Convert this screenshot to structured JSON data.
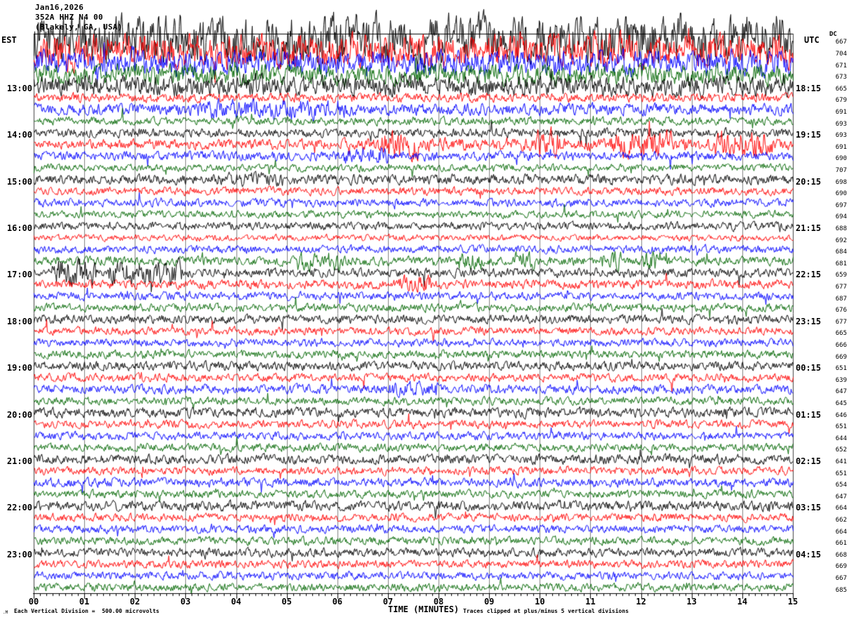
{
  "header": {
    "date": "Jan16,2026",
    "station": "352A HHZ N4 00",
    "location": "(Blakely, GA, USA)",
    "left_timezone": "EST",
    "right_timezone": "UTC",
    "dc_column_label": "DC"
  },
  "footer": {
    "corner_mark": ".M",
    "scale_note": "Each Vertical Division =  500.00 microvolts",
    "axis_title": "TIME (MINUTES)",
    "clip_note": "Traces clipped at plus/minus 5 vertical divisions"
  },
  "chart_data": {
    "type": "line",
    "title": "Helicorder seismogram 352A HHZ N4 00 Jan16,2026",
    "xlabel": "TIME (MINUTES)",
    "x_range_minutes": [
      0,
      15
    ],
    "x_tick_labels": [
      "00",
      "01",
      "02",
      "03",
      "04",
      "05",
      "06",
      "07",
      "08",
      "09",
      "10",
      "11",
      "12",
      "13",
      "14",
      "15"
    ],
    "minor_ticks_per_minute": 8,
    "minutes_per_row": 15,
    "vertical_division_microvolts": 500.0,
    "clip_divisions": 5,
    "grid": true,
    "grid_color": "#808080",
    "border_color": "#444444",
    "palette": {
      "black": "#000000",
      "red": "#ff0000",
      "blue": "#0000ff",
      "green": "#006600"
    },
    "rows": [
      {
        "color": "black",
        "est": "",
        "utc": "",
        "dc": "667",
        "amp": 26,
        "bursts": []
      },
      {
        "color": "red",
        "est": "",
        "utc": "",
        "dc": "704",
        "amp": 19,
        "bursts": []
      },
      {
        "color": "blue",
        "est": "",
        "utc": "",
        "dc": "671",
        "amp": 14,
        "bursts": []
      },
      {
        "color": "green",
        "est": "",
        "utc": "",
        "dc": "673",
        "amp": 11,
        "bursts": []
      },
      {
        "color": "black",
        "est": "13:00",
        "utc": "18:15",
        "dc": "665",
        "amp": 11,
        "bursts": []
      },
      {
        "color": "red",
        "est": "",
        "utc": "",
        "dc": "679",
        "amp": 5,
        "bursts": []
      },
      {
        "color": "blue",
        "est": "",
        "utc": "",
        "dc": "691",
        "amp": 6.5,
        "bursts": [
          [
            3.3,
            6.2,
            1.7
          ]
        ]
      },
      {
        "color": "green",
        "est": "",
        "utc": "",
        "dc": "693",
        "amp": 4.5,
        "bursts": []
      },
      {
        "color": "black",
        "est": "14:00",
        "utc": "19:15",
        "dc": "693",
        "amp": 5,
        "bursts": []
      },
      {
        "color": "red",
        "est": "",
        "utc": "",
        "dc": "691",
        "amp": 5.5,
        "bursts": [
          [
            6.5,
            14.8,
            1.3
          ],
          [
            6.8,
            7.6,
            2.2
          ],
          [
            9.9,
            10.4,
            2.3
          ],
          [
            11.4,
            12.6,
            2.1
          ],
          [
            13.5,
            14.6,
            2.2
          ]
        ]
      },
      {
        "color": "blue",
        "est": "",
        "utc": "",
        "dc": "690",
        "amp": 5,
        "bursts": [
          [
            6.1,
            7.0,
            1.9
          ]
        ]
      },
      {
        "color": "green",
        "est": "",
        "utc": "",
        "dc": "707",
        "amp": 4,
        "bursts": []
      },
      {
        "color": "black",
        "est": "15:00",
        "utc": "20:15",
        "dc": "698",
        "amp": 5.5,
        "bursts": [
          [
            3.6,
            5.0,
            1.4
          ]
        ]
      },
      {
        "color": "red",
        "est": "",
        "utc": "",
        "dc": "690",
        "amp": 4.5,
        "bursts": []
      },
      {
        "color": "blue",
        "est": "",
        "utc": "",
        "dc": "697",
        "amp": 4.5,
        "bursts": []
      },
      {
        "color": "green",
        "est": "",
        "utc": "",
        "dc": "694",
        "amp": 4,
        "bursts": []
      },
      {
        "color": "black",
        "est": "16:00",
        "utc": "21:15",
        "dc": "688",
        "amp": 4.5,
        "bursts": []
      },
      {
        "color": "red",
        "est": "",
        "utc": "",
        "dc": "692",
        "amp": 3.5,
        "bursts": []
      },
      {
        "color": "blue",
        "est": "",
        "utc": "",
        "dc": "684",
        "amp": 4.5,
        "bursts": []
      },
      {
        "color": "green",
        "est": "",
        "utc": "",
        "dc": "681",
        "amp": 5,
        "bursts": [
          [
            5.2,
            6.1,
            2.2
          ],
          [
            8.4,
            8.9,
            2.2
          ],
          [
            9.5,
            9.9,
            2.2
          ],
          [
            11.2,
            11.6,
            2.2
          ],
          [
            12.0,
            12.4,
            2.2
          ]
        ]
      },
      {
        "color": "black",
        "est": "17:00",
        "utc": "22:15",
        "dc": "659",
        "amp": 5,
        "bursts": [
          [
            0.35,
            1.25,
            3.0
          ],
          [
            1.45,
            2.95,
            2.7
          ]
        ]
      },
      {
        "color": "red",
        "est": "",
        "utc": "",
        "dc": "677",
        "amp": 5,
        "bursts": [
          [
            7.2,
            7.9,
            2.0
          ]
        ]
      },
      {
        "color": "blue",
        "est": "",
        "utc": "",
        "dc": "687",
        "amp": 4.5,
        "bursts": []
      },
      {
        "color": "green",
        "est": "",
        "utc": "",
        "dc": "676",
        "amp": 4.5,
        "bursts": []
      },
      {
        "color": "black",
        "est": "18:00",
        "utc": "23:15",
        "dc": "677",
        "amp": 5,
        "bursts": []
      },
      {
        "color": "red",
        "est": "",
        "utc": "",
        "dc": "665",
        "amp": 4.5,
        "bursts": []
      },
      {
        "color": "blue",
        "est": "",
        "utc": "",
        "dc": "666",
        "amp": 4.5,
        "bursts": []
      },
      {
        "color": "green",
        "est": "",
        "utc": "",
        "dc": "669",
        "amp": 4.5,
        "bursts": []
      },
      {
        "color": "black",
        "est": "19:00",
        "utc": "00:15",
        "dc": "651",
        "amp": 5,
        "bursts": []
      },
      {
        "color": "red",
        "est": "",
        "utc": "",
        "dc": "639",
        "amp": 4.5,
        "bursts": []
      },
      {
        "color": "blue",
        "est": "",
        "utc": "",
        "dc": "647",
        "amp": 5,
        "bursts": [
          [
            7.0,
            8.0,
            1.6
          ]
        ]
      },
      {
        "color": "green",
        "est": "",
        "utc": "",
        "dc": "645",
        "amp": 4.5,
        "bursts": []
      },
      {
        "color": "black",
        "est": "20:00",
        "utc": "01:15",
        "dc": "646",
        "amp": 5.5,
        "bursts": []
      },
      {
        "color": "red",
        "est": "",
        "utc": "",
        "dc": "651",
        "amp": 4.5,
        "bursts": []
      },
      {
        "color": "blue",
        "est": "",
        "utc": "",
        "dc": "644",
        "amp": 4.5,
        "bursts": []
      },
      {
        "color": "green",
        "est": "",
        "utc": "",
        "dc": "652",
        "amp": 4.5,
        "bursts": []
      },
      {
        "color": "black",
        "est": "21:00",
        "utc": "02:15",
        "dc": "641",
        "amp": 5.5,
        "bursts": []
      },
      {
        "color": "red",
        "est": "",
        "utc": "",
        "dc": "651",
        "amp": 4.5,
        "bursts": []
      },
      {
        "color": "blue",
        "est": "",
        "utc": "",
        "dc": "654",
        "amp": 5,
        "bursts": []
      },
      {
        "color": "green",
        "est": "",
        "utc": "",
        "dc": "647",
        "amp": 4.5,
        "bursts": []
      },
      {
        "color": "black",
        "est": "22:00",
        "utc": "03:15",
        "dc": "664",
        "amp": 5.5,
        "bursts": []
      },
      {
        "color": "red",
        "est": "",
        "utc": "",
        "dc": "662",
        "amp": 4.5,
        "bursts": []
      },
      {
        "color": "blue",
        "est": "",
        "utc": "",
        "dc": "664",
        "amp": 4.5,
        "bursts": []
      },
      {
        "color": "green",
        "est": "",
        "utc": "",
        "dc": "661",
        "amp": 4.5,
        "bursts": []
      },
      {
        "color": "black",
        "est": "23:00",
        "utc": "04:15",
        "dc": "668",
        "amp": 5,
        "bursts": []
      },
      {
        "color": "red",
        "est": "",
        "utc": "",
        "dc": "669",
        "amp": 4.5,
        "bursts": []
      },
      {
        "color": "blue",
        "est": "",
        "utc": "",
        "dc": "667",
        "amp": 4.5,
        "bursts": []
      },
      {
        "color": "green",
        "est": "",
        "utc": "",
        "dc": "685",
        "amp": 4.5,
        "bursts": []
      }
    ]
  }
}
